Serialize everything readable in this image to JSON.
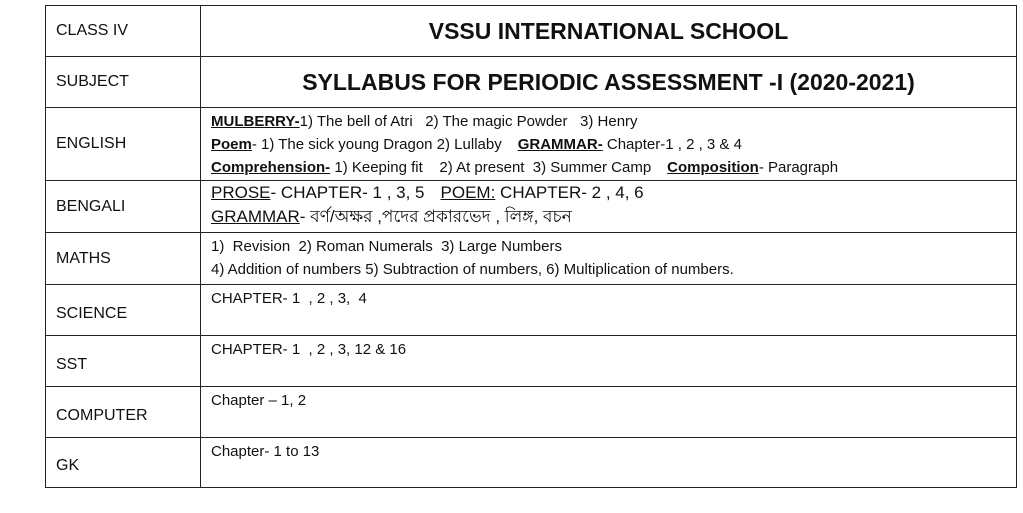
{
  "header": {
    "class_label": "CLASS IV",
    "school": "VSSU INTERNATIONAL SCHOOL",
    "subject_label": "SUBJECT",
    "title": "SYLLABUS FOR PERIODIC ASSESSMENT -I (2020-2021)"
  },
  "english": {
    "label": "ENGLISH",
    "mulberry_h": "MULBERRY-",
    "mulberry": "1) The bell of Atri   2) The magic Powder   3) Henry",
    "poem_h": "Poem",
    "poem": "- 1) The sick young Dragon  2) Lullaby",
    "grammar_h": "GRAMMAR-",
    "grammar": " Chapter-1 , 2 , 3 & 4",
    "comp_h": "Comprehension-",
    "comp": " 1) Keeping fit    2) At present  3) Summer Camp",
    "compo_h": "Composition",
    "compo": "- Paragraph"
  },
  "bengali": {
    "label": "BENGALI",
    "prose_h": "PROSE",
    "prose": "- CHAPTER- 1 , 3, 5",
    "poem_h": "POEM:",
    "poem": " CHAPTER- 2 , 4, 6",
    "grammar_h": "GRAMMAR",
    "grammar": "- বর্ণ/অক্ষর ,পদের প্রকারভেদ , লিঙ্গ, বচন"
  },
  "maths": {
    "label": "MATHS",
    "line1": "1)  Revision  2) Roman Numerals  3) Large Numbers",
    "line2": "4) Addition of numbers 5) Subtraction of numbers, 6) Multiplication of numbers."
  },
  "science": {
    "label": "SCIENCE",
    "text": "CHAPTER- 1  , 2 , 3,  4"
  },
  "sst": {
    "label": "SST",
    "text": "CHAPTER- 1  , 2 , 3, 12 & 16"
  },
  "computer": {
    "label": "COMPUTER",
    "text": "Chapter – 1, 2"
  },
  "gk": {
    "label": "GK",
    "text": "Chapter- 1 to 13"
  }
}
